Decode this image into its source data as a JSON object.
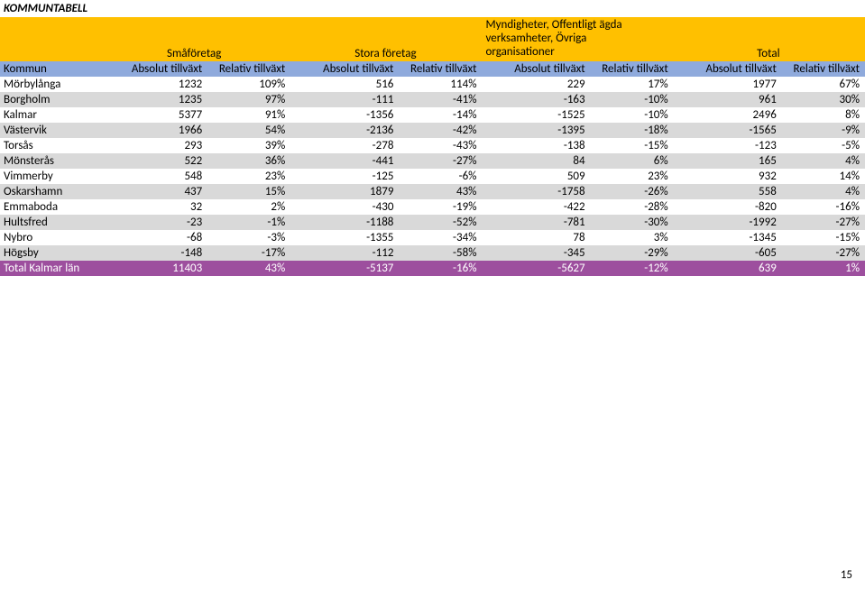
{
  "title": "KOMMUNTABELL",
  "page_number": "15",
  "groups": [
    "Småföretag",
    "Stora företag",
    "Myndigheter, Offentligt ägda\nverksamheter, Övriga\norganisationer",
    "Total"
  ],
  "columns": {
    "kommun": "Kommun",
    "abs": "Absolut tillväxt",
    "rel": "Relativ tillväxt"
  },
  "rows": [
    {
      "kommun": "Mörbylånga",
      "v": [
        "1232",
        "109%",
        "516",
        "114%",
        "229",
        "17%",
        "1977",
        "67%"
      ]
    },
    {
      "kommun": "Borgholm",
      "v": [
        "1235",
        "97%",
        "-111",
        "-41%",
        "-163",
        "-10%",
        "961",
        "30%"
      ]
    },
    {
      "kommun": "Kalmar",
      "v": [
        "5377",
        "91%",
        "-1356",
        "-14%",
        "-1525",
        "-10%",
        "2496",
        "8%"
      ]
    },
    {
      "kommun": "Västervik",
      "v": [
        "1966",
        "54%",
        "-2136",
        "-42%",
        "-1395",
        "-18%",
        "-1565",
        "-9%"
      ]
    },
    {
      "kommun": "Torsås",
      "v": [
        "293",
        "39%",
        "-278",
        "-43%",
        "-138",
        "-15%",
        "-123",
        "-5%"
      ]
    },
    {
      "kommun": "Mönsterås",
      "v": [
        "522",
        "36%",
        "-441",
        "-27%",
        "84",
        "6%",
        "165",
        "4%"
      ]
    },
    {
      "kommun": "Vimmerby",
      "v": [
        "548",
        "23%",
        "-125",
        "-6%",
        "509",
        "23%",
        "932",
        "14%"
      ]
    },
    {
      "kommun": "Oskarshamn",
      "v": [
        "437",
        "15%",
        "1879",
        "43%",
        "-1758",
        "-26%",
        "558",
        "4%"
      ]
    },
    {
      "kommun": "Emmaboda",
      "v": [
        "32",
        "2%",
        "-430",
        "-19%",
        "-422",
        "-28%",
        "-820",
        "-16%"
      ]
    },
    {
      "kommun": "Hultsfred",
      "v": [
        "-23",
        "-1%",
        "-1188",
        "-52%",
        "-781",
        "-30%",
        "-1992",
        "-27%"
      ]
    },
    {
      "kommun": "Nybro",
      "v": [
        "-68",
        "-3%",
        "-1355",
        "-34%",
        "78",
        "3%",
        "-1345",
        "-15%"
      ]
    },
    {
      "kommun": "Högsby",
      "v": [
        "-148",
        "-17%",
        "-112",
        "-58%",
        "-345",
        "-29%",
        "-605",
        "-27%"
      ]
    }
  ],
  "total_row": {
    "label": "Total Kalmar län",
    "v": [
      "11403",
      "43%",
      "-5137",
      "-16%",
      "-5627",
      "-12%",
      "639",
      "1%"
    ]
  },
  "colors": {
    "header1_bg": "#ffc000",
    "header2_bg": "#8faadc",
    "band_alt_bg": "#d9d9d9",
    "total_bg": "#9d4f9e",
    "total_fg": "#ffffff"
  }
}
